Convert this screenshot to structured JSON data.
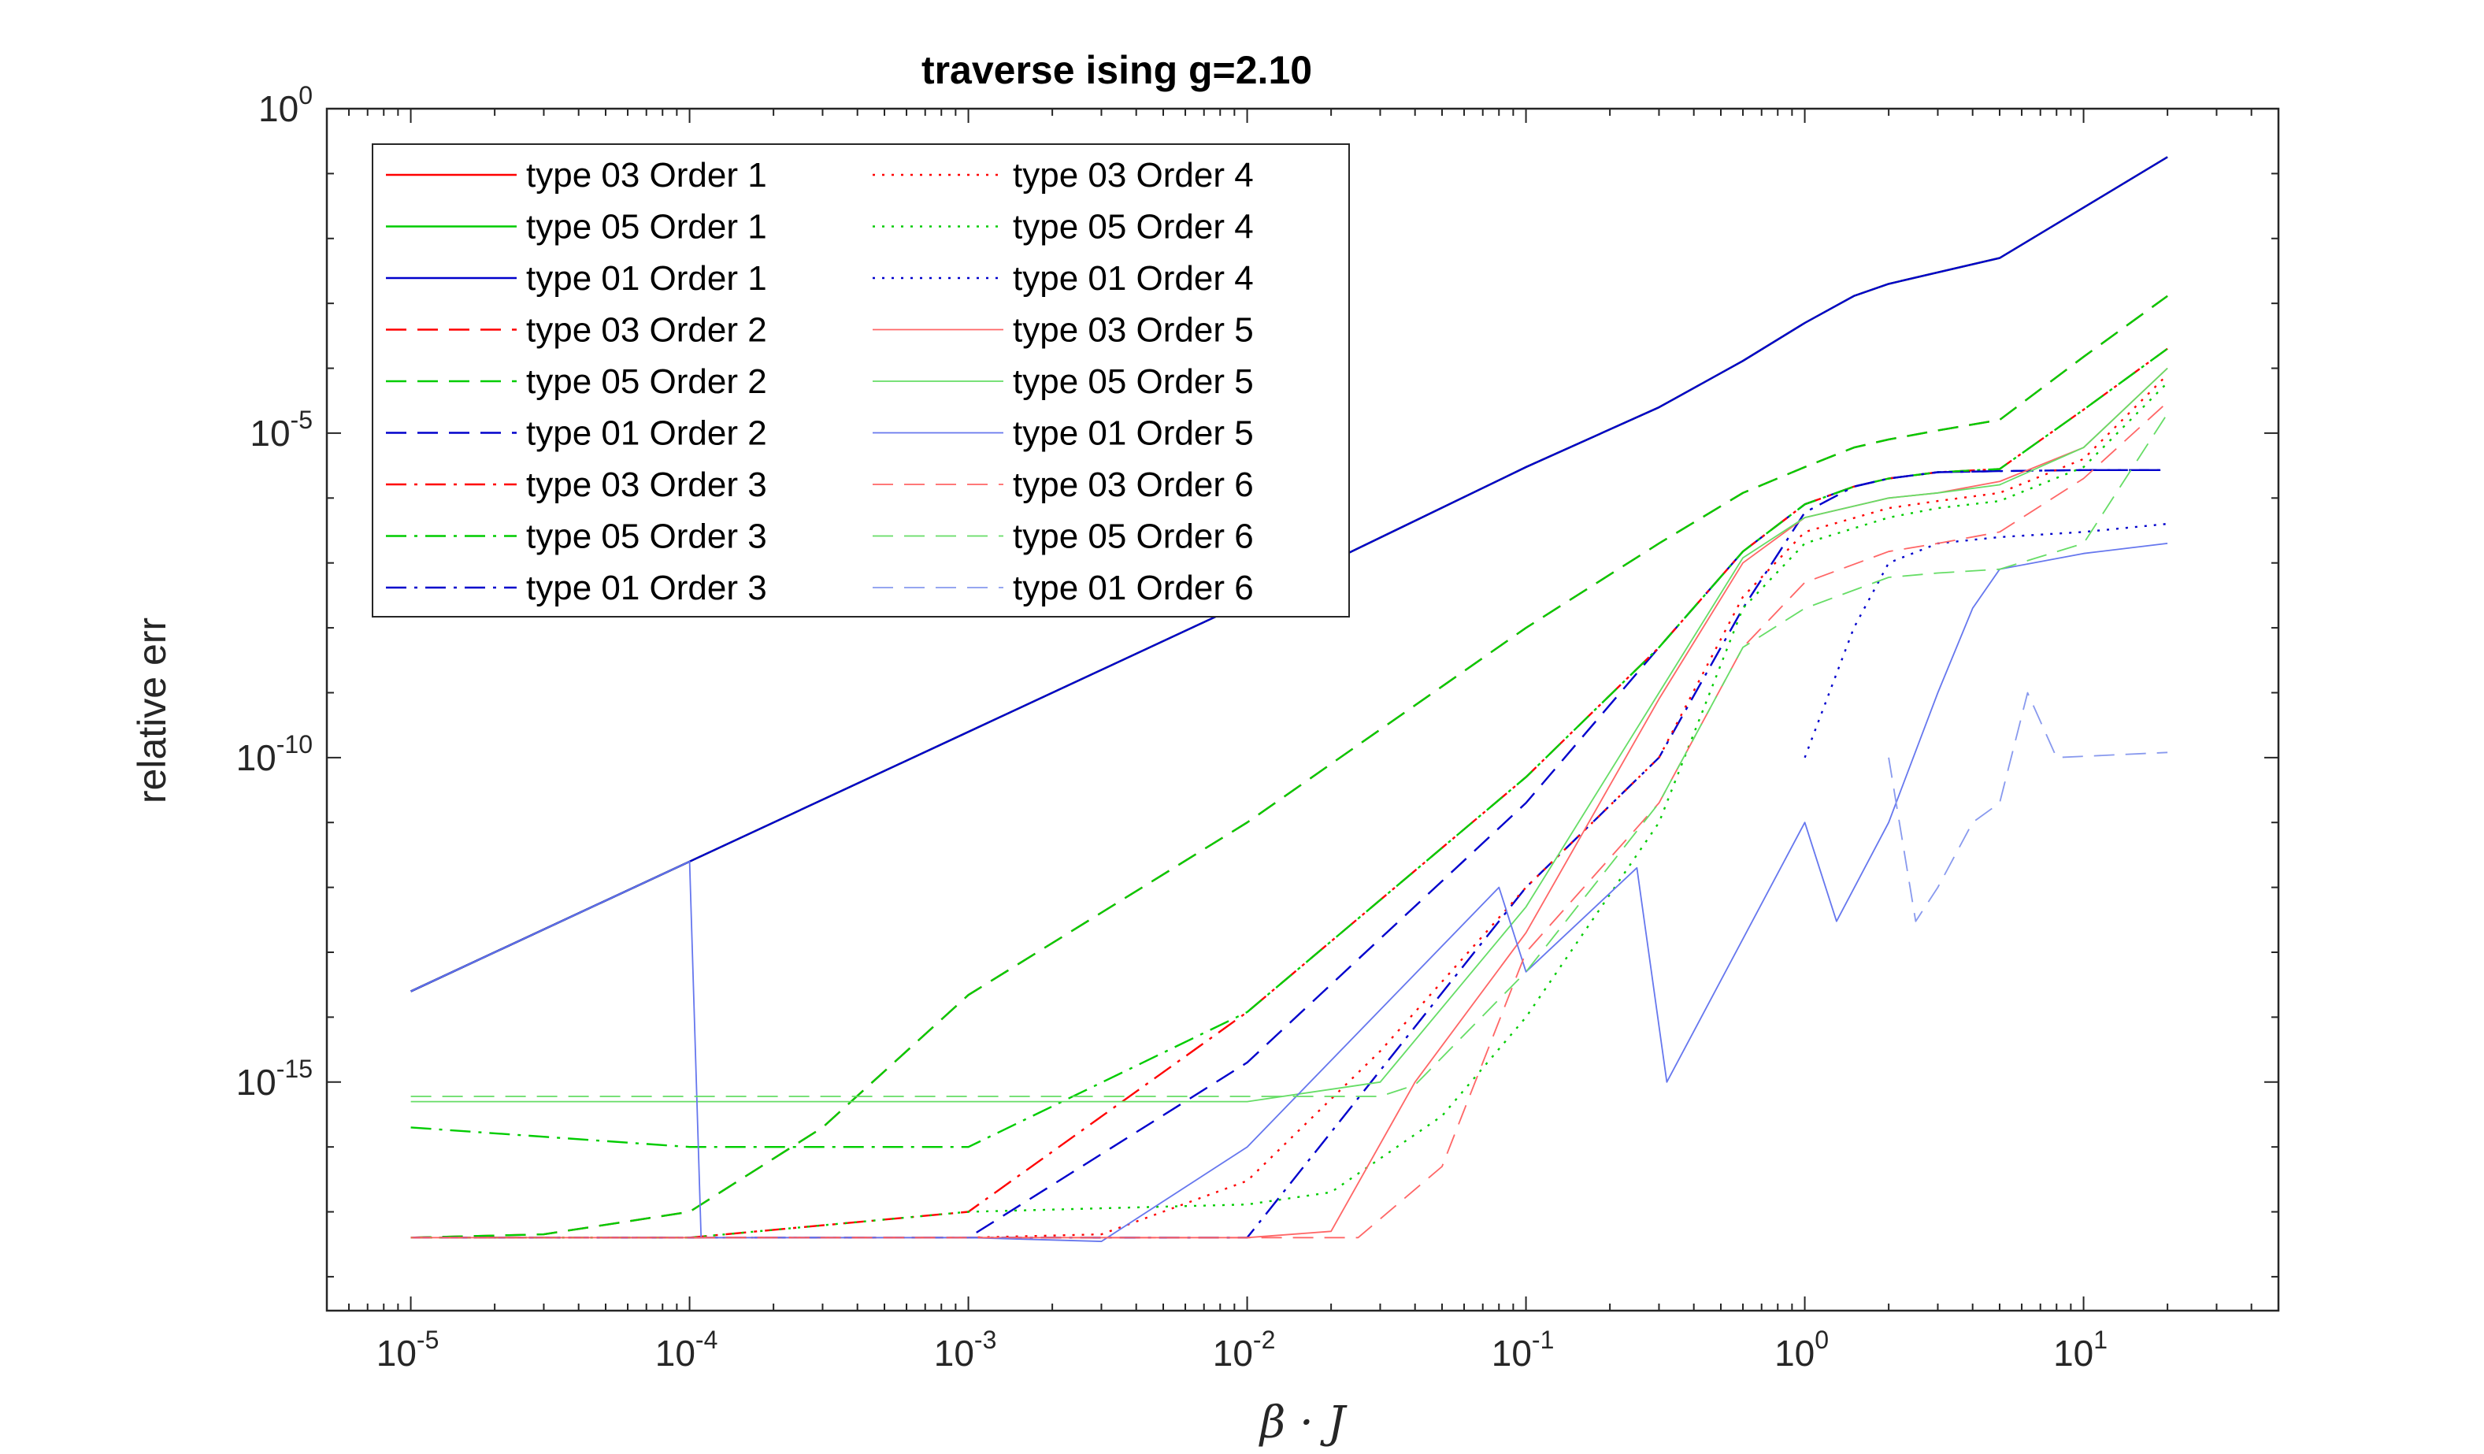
{
  "chart_data": {
    "type": "line",
    "title": "traverse ising g=2.10",
    "xlabel": "β · J",
    "ylabel": "relative err",
    "x_scale": "log",
    "y_scale": "log",
    "xlim": [
      5e-06,
      50
    ],
    "ylim": [
      3e-19,
      1
    ],
    "x_ticks": [
      {
        "value": 1e-05,
        "base": "10",
        "exp": "-5"
      },
      {
        "value": 0.0001,
        "base": "10",
        "exp": "-4"
      },
      {
        "value": 0.001,
        "base": "10",
        "exp": "-3"
      },
      {
        "value": 0.01,
        "base": "10",
        "exp": "-2"
      },
      {
        "value": 0.1,
        "base": "10",
        "exp": "-1"
      },
      {
        "value": 1,
        "base": "10",
        "exp": "0"
      },
      {
        "value": 10,
        "base": "10",
        "exp": "1"
      }
    ],
    "y_ticks": [
      {
        "value": 1e-15,
        "base": "10",
        "exp": "-15"
      },
      {
        "value": 1e-10,
        "base": "10",
        "exp": "-10"
      },
      {
        "value": 1e-05,
        "base": "10",
        "exp": "-5"
      },
      {
        "value": 1,
        "base": "10",
        "exp": "0"
      }
    ],
    "grid": false,
    "legend_position": "top-left",
    "legend_columns": 2,
    "series": [
      {
        "name": "type 03 Order 1",
        "color": "#ff0000",
        "style": "solid",
        "width": 2.4,
        "opacity": 1,
        "x": [
          1e-05,
          0.0001,
          0.001,
          0.01,
          0.1,
          0.3,
          0.6,
          1,
          1.5,
          2,
          3,
          5,
          10,
          20
        ],
        "y": [
          2.5e-14,
          2.5e-12,
          2.5e-10,
          2.5e-08,
          3e-06,
          2.5e-05,
          0.00013,
          0.0005,
          0.0013,
          0.002,
          0.003,
          0.005,
          0.03,
          0.18
        ]
      },
      {
        "name": "type 05 Order 1",
        "color": "#00cc00",
        "style": "solid",
        "width": 2.4,
        "opacity": 1,
        "x": [
          1e-05,
          0.0001,
          0.001,
          0.01,
          0.1,
          0.3,
          0.6,
          1,
          1.5,
          2,
          3,
          5,
          10,
          20
        ],
        "y": [
          2.5e-14,
          2.5e-12,
          2.5e-10,
          2.5e-08,
          3e-06,
          2.5e-05,
          0.00013,
          0.0005,
          0.0013,
          0.002,
          0.003,
          0.005,
          0.03,
          0.18
        ]
      },
      {
        "name": "type 01 Order 1",
        "color": "#0000cc",
        "style": "solid",
        "width": 2.4,
        "opacity": 1,
        "x": [
          1e-05,
          0.0001,
          0.001,
          0.01,
          0.1,
          0.3,
          0.6,
          1,
          1.5,
          2,
          3,
          5,
          10,
          20
        ],
        "y": [
          2.5e-14,
          2.5e-12,
          2.5e-10,
          2.5e-08,
          3e-06,
          2.5e-05,
          0.00013,
          0.0005,
          0.0013,
          0.002,
          0.003,
          0.005,
          0.03,
          0.18
        ]
      },
      {
        "name": "type 03 Order 2",
        "color": "#ff0000",
        "style": "dash",
        "width": 2.4,
        "opacity": 1,
        "x": [
          1e-05,
          3e-05,
          0.0001,
          0.0003,
          0.001,
          0.01,
          0.1,
          0.3,
          0.6,
          1,
          1.5,
          2,
          3,
          5,
          10,
          20
        ],
        "y": [
          4e-18,
          4.5e-18,
          1e-17,
          2e-16,
          2.2e-14,
          1e-11,
          1e-08,
          2e-07,
          1.2e-06,
          3e-06,
          6e-06,
          8e-06,
          1.1e-05,
          1.6e-05,
          0.00015,
          0.0013
        ]
      },
      {
        "name": "type 05 Order 2",
        "color": "#00cc00",
        "style": "dash",
        "width": 2.4,
        "opacity": 1,
        "x": [
          1e-05,
          3e-05,
          0.0001,
          0.0003,
          0.001,
          0.01,
          0.1,
          0.3,
          0.6,
          1,
          1.5,
          2,
          3,
          5,
          10,
          20
        ],
        "y": [
          4e-18,
          4.5e-18,
          1e-17,
          2e-16,
          2.2e-14,
          1e-11,
          1e-08,
          2e-07,
          1.2e-06,
          3e-06,
          6e-06,
          8e-06,
          1.1e-05,
          1.6e-05,
          0.00015,
          0.0013
        ]
      },
      {
        "name": "type 01 Order 2",
        "color": "#0000cc",
        "style": "dash",
        "width": 2.4,
        "opacity": 1,
        "x": [
          1e-05,
          0.0001,
          0.001,
          0.01,
          0.1,
          0.3,
          0.6,
          1,
          1.5,
          2,
          3,
          5,
          10,
          20
        ],
        "y": [
          4e-18,
          4e-18,
          4e-18,
          2e-15,
          2e-11,
          5e-09,
          1.5e-07,
          8e-07,
          1.5e-06,
          2e-06,
          2.5e-06,
          2.6e-06,
          2.7e-06,
          2.7e-06
        ]
      },
      {
        "name": "type 03 Order 3",
        "color": "#ff0000",
        "style": "dashdot",
        "width": 2.4,
        "opacity": 1,
        "x": [
          1e-05,
          0.0001,
          0.001,
          0.01,
          0.1,
          0.3,
          0.6,
          1,
          1.5,
          2,
          3,
          5,
          10,
          20
        ],
        "y": [
          4e-18,
          4e-18,
          1e-17,
          1.2e-14,
          5e-11,
          5e-09,
          1.5e-07,
          8e-07,
          1.5e-06,
          2e-06,
          2.5e-06,
          2.8e-06,
          2.3e-05,
          0.0002
        ]
      },
      {
        "name": "type 05 Order 3",
        "color": "#00cc00",
        "style": "dashdot",
        "width": 2.4,
        "opacity": 1,
        "x": [
          1e-05,
          0.0001,
          0.001,
          0.01,
          0.1,
          0.3,
          0.6,
          1,
          1.5,
          2,
          3,
          5,
          10,
          20
        ],
        "y": [
          2e-16,
          1e-16,
          1e-16,
          1.2e-14,
          5e-11,
          5e-09,
          1.5e-07,
          8e-07,
          1.5e-06,
          2e-06,
          2.5e-06,
          2.8e-06,
          2.3e-05,
          0.0002
        ]
      },
      {
        "name": "type 01 Order 3",
        "color": "#0000cc",
        "style": "dashdot",
        "width": 2.4,
        "opacity": 1,
        "x": [
          1e-05,
          0.0001,
          0.001,
          0.01,
          0.1,
          0.3,
          0.6,
          1,
          1.5,
          2,
          3,
          5,
          10,
          20
        ],
        "y": [
          4e-18,
          4e-18,
          4e-18,
          4e-18,
          1e-12,
          1e-10,
          2e-08,
          6e-07,
          1.5e-06,
          2e-06,
          2.5e-06,
          2.6e-06,
          2.7e-06,
          2.7e-06
        ]
      },
      {
        "name": "type 03 Order 4",
        "color": "#ff0000",
        "style": "dot",
        "width": 2.4,
        "opacity": 1,
        "x": [
          1e-05,
          0.0001,
          0.001,
          0.003,
          0.01,
          0.03,
          0.1,
          0.3,
          0.6,
          1,
          2,
          3,
          5,
          10,
          20
        ],
        "y": [
          4e-18,
          4e-18,
          4e-18,
          4.5e-18,
          3e-17,
          3e-15,
          1e-12,
          1e-10,
          3e-08,
          3e-07,
          7e-07,
          9e-07,
          1.2e-06,
          4e-06,
          8e-05
        ]
      },
      {
        "name": "type 05 Order 4",
        "color": "#00cc00",
        "style": "dot",
        "width": 2.4,
        "opacity": 1,
        "x": [
          1e-05,
          0.0001,
          0.001,
          0.01,
          0.02,
          0.05,
          0.1,
          0.3,
          0.6,
          1,
          2,
          3,
          5,
          10,
          20
        ],
        "y": [
          4e-18,
          4e-18,
          1e-17,
          1.3e-17,
          2e-17,
          3e-16,
          1e-14,
          1e-11,
          2e-08,
          2e-07,
          5e-07,
          7e-07,
          9e-07,
          3e-06,
          6e-05
        ]
      },
      {
        "name": "type 01 Order 4",
        "color": "#0000cc",
        "style": "dot",
        "width": 2.4,
        "opacity": 1,
        "x": [
          1,
          1.5,
          2,
          3,
          5,
          10,
          20
        ],
        "y": [
          1e-10,
          1e-08,
          1e-07,
          2e-07,
          2.5e-07,
          3e-07,
          4e-07
        ]
      },
      {
        "name": "type 03 Order 5",
        "color": "#ff6666",
        "style": "solid",
        "width": 1.8,
        "opacity": 1,
        "x": [
          1e-05,
          0.0001,
          0.001,
          0.01,
          0.02,
          0.04,
          0.1,
          0.3,
          0.6,
          1,
          2,
          3,
          5,
          10,
          20
        ],
        "y": [
          4e-18,
          4e-18,
          4e-18,
          4e-18,
          5e-18,
          1e-15,
          2e-13,
          8e-10,
          1e-07,
          5e-07,
          1e-06,
          1.2e-06,
          1.8e-06,
          6e-06,
          0.0001
        ]
      },
      {
        "name": "type 05 Order 5",
        "color": "#66dd66",
        "style": "solid",
        "width": 1.8,
        "opacity": 1,
        "x": [
          1e-05,
          3e-05,
          0.0001,
          0.001,
          0.01,
          0.03,
          0.1,
          0.3,
          0.6,
          1,
          2,
          3,
          5,
          10,
          20
        ],
        "y": [
          5e-16,
          5e-16,
          5e-16,
          5e-16,
          5e-16,
          1e-15,
          5e-13,
          1e-09,
          1.2e-07,
          5e-07,
          1e-06,
          1.2e-06,
          1.6e-06,
          6e-06,
          0.0001
        ]
      },
      {
        "name": "type 01 Order 5",
        "color": "#6677ee",
        "style": "solid",
        "width": 1.8,
        "opacity": 1,
        "x": [
          1e-05,
          0.0001,
          0.00011,
          0.001,
          0.003,
          0.01,
          0.08,
          0.1,
          0.25,
          0.32,
          1,
          1.3,
          2,
          3,
          4,
          5,
          10,
          20
        ],
        "y": [
          2.5e-14,
          2.5e-12,
          4e-18,
          4e-18,
          3.5e-18,
          1e-16,
          1e-12,
          5e-14,
          2e-12,
          1e-15,
          1e-11,
          3e-13,
          1e-11,
          1e-09,
          2e-08,
          8e-08,
          1.4e-07,
          2e-07
        ]
      },
      {
        "name": "type 03 Order 6",
        "color": "#ff6666",
        "style": "dash",
        "width": 1.8,
        "opacity": 1,
        "x": [
          1e-05,
          0.0001,
          0.001,
          0.01,
          0.025,
          0.05,
          0.1,
          0.3,
          0.6,
          1,
          2,
          3,
          5,
          10,
          20
        ],
        "y": [
          4e-18,
          4e-18,
          4e-18,
          4e-18,
          4e-18,
          5e-17,
          1e-13,
          2e-11,
          5e-09,
          5e-08,
          1.5e-07,
          2e-07,
          3e-07,
          2e-06,
          3e-05
        ]
      },
      {
        "name": "type 05 Order 6",
        "color": "#66dd66",
        "style": "dash",
        "width": 1.8,
        "opacity": 1,
        "x": [
          1e-05,
          0.0001,
          0.001,
          0.01,
          0.03,
          0.04,
          0.1,
          0.3,
          0.6,
          1,
          2,
          3,
          5,
          10,
          20
        ],
        "y": [
          6e-16,
          6e-16,
          6e-16,
          6e-16,
          6e-16,
          9e-16,
          5e-14,
          2e-11,
          5e-09,
          2e-08,
          6e-08,
          7e-08,
          8e-08,
          2e-07,
          2e-05
        ]
      },
      {
        "name": "type 01 Order 6",
        "color": "#8899ee",
        "style": "dash",
        "width": 1.8,
        "opacity": 1,
        "x": [
          2,
          2.5,
          3,
          4,
          5,
          6.3,
          8,
          20
        ],
        "y": [
          1e-10,
          3e-13,
          1e-12,
          1e-11,
          2e-11,
          1e-09,
          1e-10,
          1.2e-10
        ]
      }
    ]
  }
}
